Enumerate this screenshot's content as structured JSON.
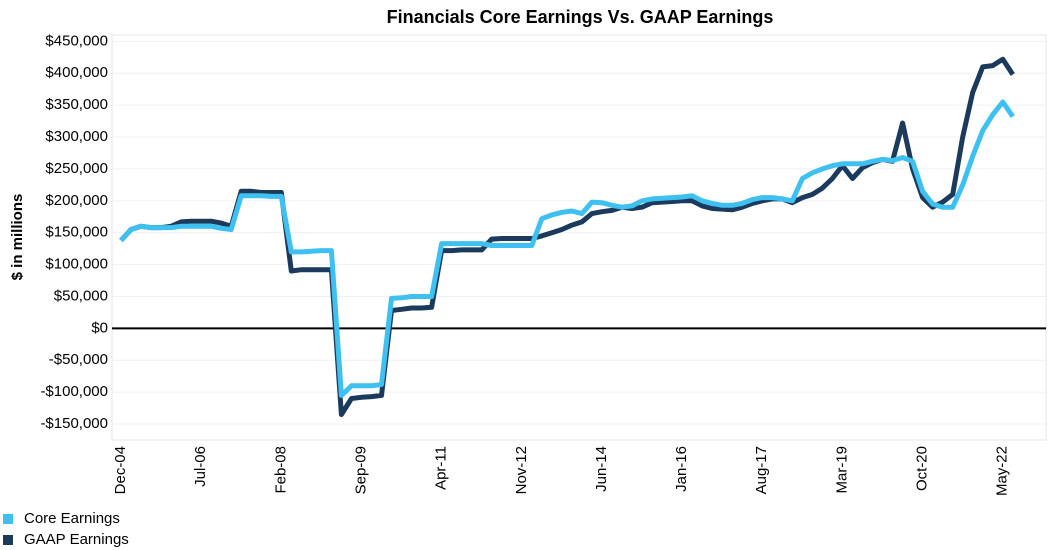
{
  "chart_data": {
    "type": "line",
    "title": "Financials Core Earnings Vs. GAAP Earnings",
    "y_label": "$ in millions",
    "categories": [
      "Dec-04",
      null,
      null,
      null,
      null,
      null,
      null,
      null,
      "Jul-06",
      null,
      null,
      null,
      null,
      null,
      null,
      null,
      "Feb-08",
      null,
      null,
      null,
      null,
      null,
      null,
      null,
      "Sep-09",
      null,
      null,
      null,
      null,
      null,
      null,
      null,
      "Apr-11",
      null,
      null,
      null,
      null,
      null,
      null,
      null,
      "Nov-12",
      null,
      null,
      null,
      null,
      null,
      null,
      null,
      "Jun-14",
      null,
      null,
      null,
      null,
      null,
      null,
      null,
      "Jan-16",
      null,
      null,
      null,
      null,
      null,
      null,
      null,
      "Aug-17",
      null,
      null,
      null,
      null,
      null,
      null,
      null,
      "Mar-19",
      null,
      null,
      null,
      null,
      null,
      null,
      null,
      "Oct-20",
      null,
      null,
      null,
      null,
      null,
      null,
      null,
      "May-22",
      null
    ],
    "series": [
      {
        "name": "Core Earnings",
        "color": "#3ec1f0",
        "values": [
          138000,
          155000,
          160000,
          158000,
          158000,
          158000,
          160000,
          160000,
          160000,
          160000,
          157000,
          155000,
          208000,
          208000,
          208000,
          207000,
          207000,
          120000,
          120000,
          121000,
          122000,
          122000,
          -105000,
          -90000,
          -90000,
          -90000,
          -88000,
          47000,
          48000,
          50000,
          50000,
          50000,
          133000,
          133000,
          133000,
          133000,
          133000,
          130000,
          130000,
          130000,
          130000,
          130000,
          172000,
          178000,
          182000,
          184000,
          180000,
          198000,
          197000,
          193000,
          190000,
          192000,
          200000,
          203000,
          204000,
          205000,
          206000,
          208000,
          200000,
          196000,
          193000,
          193000,
          196000,
          202000,
          205000,
          205000,
          203000,
          200000,
          235000,
          244000,
          250000,
          255000,
          258000,
          258000,
          258000,
          262000,
          265000,
          263000,
          268000,
          262000,
          215000,
          195000,
          190000,
          190000,
          225000,
          270000,
          310000,
          335000,
          355000,
          332000
        ]
      },
      {
        "name": "GAAP Earnings",
        "color": "#1b3a5c",
        "values": [
          138000,
          155000,
          160000,
          158000,
          158000,
          160000,
          167000,
          168000,
          168000,
          168000,
          165000,
          160000,
          215000,
          215000,
          213000,
          213000,
          213000,
          90000,
          92000,
          92000,
          92000,
          92000,
          -135000,
          -110000,
          -108000,
          -107000,
          -105000,
          28000,
          30000,
          32000,
          32000,
          33000,
          122000,
          122000,
          123000,
          123000,
          123000,
          140000,
          141000,
          141000,
          141000,
          141000,
          145000,
          150000,
          155000,
          162000,
          167000,
          180000,
          183000,
          185000,
          190000,
          188000,
          190000,
          197000,
          198000,
          199000,
          200000,
          200000,
          192000,
          188000,
          187000,
          186000,
          190000,
          196000,
          200000,
          203000,
          203000,
          197000,
          205000,
          210000,
          220000,
          235000,
          255000,
          235000,
          252000,
          260000,
          265000,
          262000,
          322000,
          250000,
          205000,
          190000,
          198000,
          210000,
          300000,
          370000,
          410000,
          412000,
          422000,
          398000
        ]
      }
    ],
    "ylim": [
      -175000,
      460000
    ],
    "yticks": [
      {
        "value": -150000,
        "label": "-$150,000"
      },
      {
        "value": -100000,
        "label": "-$100,000"
      },
      {
        "value": -50000,
        "label": "-$50,000"
      },
      {
        "value": 0,
        "label": "$0"
      },
      {
        "value": 50000,
        "label": "$50,000"
      },
      {
        "value": 100000,
        "label": "$100,000"
      },
      {
        "value": 150000,
        "label": "$150,000"
      },
      {
        "value": 200000,
        "label": "$200,000"
      },
      {
        "value": 250000,
        "label": "$250,000"
      },
      {
        "value": 300000,
        "label": "$300,000"
      },
      {
        "value": 350000,
        "label": "$350,000"
      },
      {
        "value": 400000,
        "label": "$400,000"
      },
      {
        "value": 450000,
        "label": "$450,000"
      }
    ],
    "grid": true,
    "legend": "bottom-left"
  }
}
